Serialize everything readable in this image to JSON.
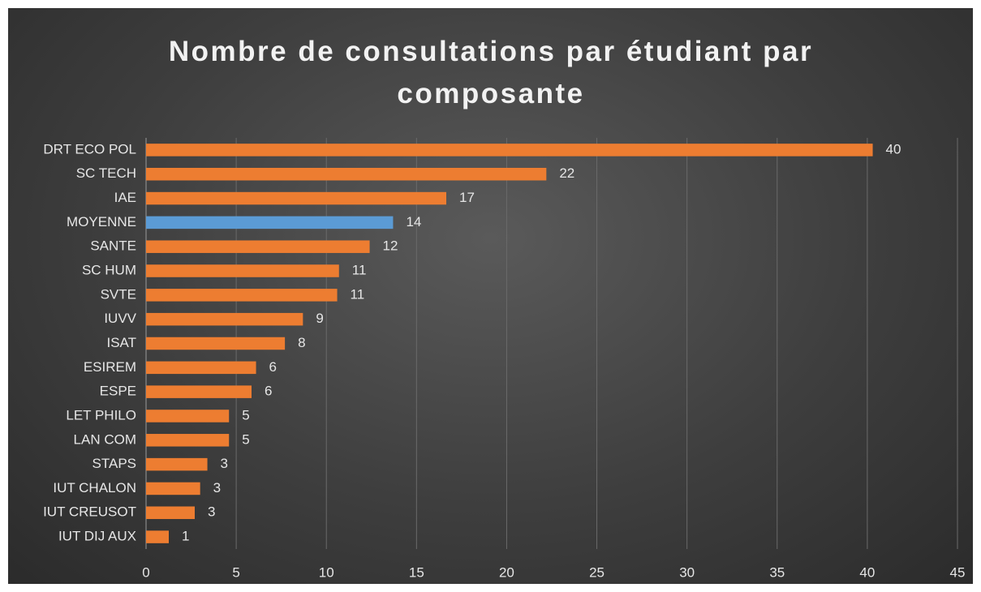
{
  "chart_data": {
    "type": "barh",
    "title": "Nombre de consultations par étudiant par composante",
    "categories": [
      "DRT ECO POL",
      "SC TECH",
      "IAE",
      "MOYENNE",
      "SANTE",
      "SC HUM",
      "SVTE",
      "IUVV",
      "ISAT",
      "ESIREM",
      "ESPE",
      "LET PHILO",
      "LAN COM",
      "STAPS",
      "IUT CHALON",
      "IUT CREUSOT",
      "IUT DIJ AUX"
    ],
    "values": [
      40.3,
      22.2,
      16.65,
      13.7,
      12.4,
      10.7,
      10.6,
      8.7,
      7.7,
      6.1,
      5.85,
      4.6,
      4.6,
      3.4,
      3.0,
      2.7,
      1.26
    ],
    "value_labels": [
      "40",
      "22",
      "17",
      "14",
      "12",
      "11",
      "11",
      "9",
      "8",
      "6",
      "6",
      "5",
      "5",
      "3",
      "3",
      "3",
      "1"
    ],
    "colors": [
      "#ed7d31",
      "#ed7d31",
      "#ed7d31",
      "#5b9bd5",
      "#ed7d31",
      "#ed7d31",
      "#ed7d31",
      "#ed7d31",
      "#ed7d31",
      "#ed7d31",
      "#ed7d31",
      "#ed7d31",
      "#ed7d31",
      "#ed7d31",
      "#ed7d31",
      "#ed7d31",
      "#ed7d31"
    ],
    "xlim": [
      0,
      45
    ],
    "xticks": [
      0,
      5,
      10,
      15,
      20,
      25,
      30,
      35,
      40,
      45
    ],
    "grid": true
  }
}
